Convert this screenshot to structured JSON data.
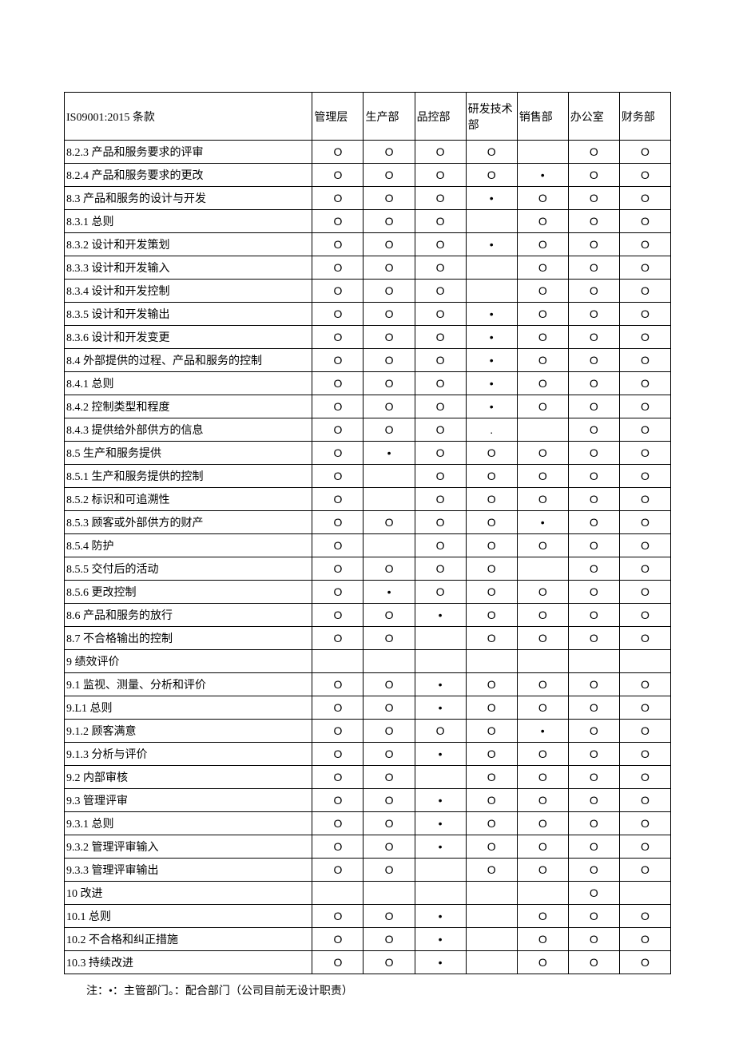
{
  "columns": [
    "IS09001:2015 条款",
    "管理层",
    "生产部",
    "品控部",
    "研发技术部",
    "销售部",
    "办公室",
    "财务部"
  ],
  "rows": [
    {
      "label": "8.2.3 产品和服务要求的评审",
      "cells": [
        "O",
        "O",
        "O",
        "O",
        "",
        "O",
        "O"
      ]
    },
    {
      "label": "8.2.4 产品和服务要求的更改",
      "cells": [
        "O",
        "O",
        "O",
        "O",
        "•",
        "O",
        "O"
      ]
    },
    {
      "label": "8.3 产品和服务的设计与开发",
      "cells": [
        "O",
        "O",
        "O",
        "•",
        "O",
        "O",
        "O"
      ]
    },
    {
      "label": "8.3.1 总则",
      "cells": [
        "O",
        "O",
        "O",
        "",
        "O",
        "O",
        "O"
      ]
    },
    {
      "label": "8.3.2 设计和开发策划",
      "cells": [
        "O",
        "O",
        "O",
        "•",
        "O",
        "O",
        "O"
      ]
    },
    {
      "label": "8.3.3 设计和开发输入",
      "cells": [
        "O",
        "O",
        "O",
        "",
        "O",
        "O",
        "O"
      ]
    },
    {
      "label": "8.3.4 设计和开发控制",
      "cells": [
        "O",
        "O",
        "O",
        "",
        "O",
        "O",
        "O"
      ]
    },
    {
      "label": "8.3.5 设计和开发输出",
      "cells": [
        "O",
        "O",
        "O",
        "•",
        "O",
        "O",
        "O"
      ]
    },
    {
      "label": "8.3.6 设计和开发变更",
      "cells": [
        "O",
        "O",
        "O",
        "•",
        "O",
        "O",
        "O"
      ]
    },
    {
      "label": "8.4 外部提供的过程、产品和服务的控制",
      "cells": [
        "O",
        "O",
        "O",
        "•",
        "O",
        "O",
        "O"
      ]
    },
    {
      "label": "8.4.1 总则",
      "cells": [
        "O",
        "O",
        "O",
        "•",
        "O",
        "O",
        "O"
      ]
    },
    {
      "label": "8.4.2 控制类型和程度",
      "cells": [
        "O",
        "O",
        "O",
        "•",
        "O",
        "O",
        "O"
      ]
    },
    {
      "label": "8.4.3 提供给外部供方的信息",
      "cells": [
        "O",
        "O",
        "O",
        ".",
        "",
        "O",
        "O"
      ]
    },
    {
      "label": "8.5 生产和服务提供",
      "cells": [
        "O",
        "•",
        "O",
        "O",
        "O",
        "O",
        "O"
      ]
    },
    {
      "label": "8.5.1 生产和服务提供的控制",
      "cells": [
        "O",
        "",
        "O",
        "O",
        "O",
        "O",
        "O"
      ]
    },
    {
      "label": "8.5.2 标识和可追溯性",
      "cells": [
        "O",
        "",
        "O",
        "O",
        "O",
        "O",
        "O"
      ]
    },
    {
      "label": "8.5.3 顾客或外部供方的财产",
      "cells": [
        "O",
        "O",
        "O",
        "O",
        "•",
        "O",
        "O"
      ]
    },
    {
      "label": "8.5.4 防护",
      "cells": [
        "O",
        "",
        "O",
        "O",
        "O",
        "O",
        "O"
      ]
    },
    {
      "label": "8.5.5 交付后的活动",
      "cells": [
        "O",
        "O",
        "O",
        "O",
        "",
        "O",
        "O"
      ]
    },
    {
      "label": "8.5.6 更改控制",
      "cells": [
        "O",
        "•",
        "O",
        "O",
        "O",
        "O",
        "O"
      ]
    },
    {
      "label": "8.6 产品和服务的放行",
      "cells": [
        "O",
        "O",
        "•",
        "O",
        "O",
        "O",
        "O"
      ]
    },
    {
      "label": "8.7 不合格输出的控制",
      "cells": [
        "O",
        "O",
        "",
        "O",
        "O",
        "O",
        "O"
      ]
    },
    {
      "label": "9 绩效评价",
      "cells": [
        "",
        "",
        "",
        "",
        "",
        "",
        ""
      ]
    },
    {
      "label": "9.1 监视、测量、分析和评价",
      "cells": [
        "O",
        "O",
        "•",
        "O",
        "O",
        "O",
        "O"
      ]
    },
    {
      "label": "9.L1 总则",
      "cells": [
        "O",
        "O",
        "•",
        "O",
        "O",
        "O",
        "O"
      ]
    },
    {
      "label": "9.1.2 顾客满意",
      "cells": [
        "O",
        "O",
        "O",
        "O",
        "•",
        "O",
        "O"
      ]
    },
    {
      "label": "9.1.3 分析与评价",
      "cells": [
        "O",
        "O",
        "•",
        "O",
        "O",
        "O",
        "O"
      ]
    },
    {
      "label": "9.2 内部审核",
      "cells": [
        "O",
        "O",
        "",
        "O",
        "O",
        "O",
        "O"
      ]
    },
    {
      "label": "9.3 管理评审",
      "cells": [
        "O",
        "O",
        "•",
        "O",
        "O",
        "O",
        "O"
      ]
    },
    {
      "label": "9.3.1 总则",
      "cells": [
        "O",
        "O",
        "•",
        "O",
        "O",
        "O",
        "O"
      ]
    },
    {
      "label": "9.3.2 管理评审输入",
      "cells": [
        "O",
        "O",
        "•",
        "O",
        "O",
        "O",
        "O"
      ]
    },
    {
      "label": "9.3.3 管理评审输出",
      "cells": [
        "O",
        "O",
        "",
        "O",
        "O",
        "O",
        "O"
      ]
    },
    {
      "label": "10 改进",
      "cells": [
        "",
        "",
        "",
        "",
        "",
        "O",
        ""
      ]
    },
    {
      "label": "10.1 总则",
      "cells": [
        "O",
        "O",
        "•",
        "",
        "O",
        "O",
        "O"
      ]
    },
    {
      "label": "10.2 不合格和纠正措施",
      "cells": [
        "O",
        "O",
        "•",
        "",
        "O",
        "O",
        "O"
      ]
    },
    {
      "label": "10.3 持续改进",
      "cells": [
        "O",
        "O",
        "•",
        "",
        "O",
        "O",
        "O"
      ]
    }
  ],
  "footnote": "注：•：主管部门。：配合部门（公司目前无设计职责）"
}
